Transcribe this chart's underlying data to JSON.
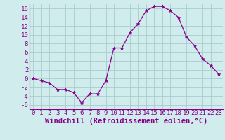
{
  "x": [
    0,
    1,
    2,
    3,
    4,
    5,
    6,
    7,
    8,
    9,
    10,
    11,
    12,
    13,
    14,
    15,
    16,
    17,
    18,
    19,
    20,
    21,
    22,
    23
  ],
  "y": [
    0,
    -0.5,
    -1,
    -2.5,
    -2.5,
    -3.2,
    -5.5,
    -3.5,
    -3.5,
    -0.5,
    7,
    7,
    10.5,
    12.5,
    15.5,
    16.5,
    16.5,
    15.5,
    14,
    9.5,
    7.5,
    4.5,
    3,
    1
  ],
  "line_color": "#880088",
  "marker": "*",
  "marker_size": 3.5,
  "bg_color": "#d0ecec",
  "grid_color": "#a8cccc",
  "xlabel": "Windchill (Refroidissement éolien,°C)",
  "xlabel_fontsize": 7.5,
  "tick_fontsize": 6.5,
  "ylim": [
    -7,
    17
  ],
  "yticks": [
    -6,
    -4,
    -2,
    0,
    2,
    4,
    6,
    8,
    10,
    12,
    14,
    16
  ],
  "xlim": [
    -0.5,
    23.5
  ],
  "xticks": [
    0,
    1,
    2,
    3,
    4,
    5,
    6,
    7,
    8,
    9,
    10,
    11,
    12,
    13,
    14,
    15,
    16,
    17,
    18,
    19,
    20,
    21,
    22,
    23
  ]
}
